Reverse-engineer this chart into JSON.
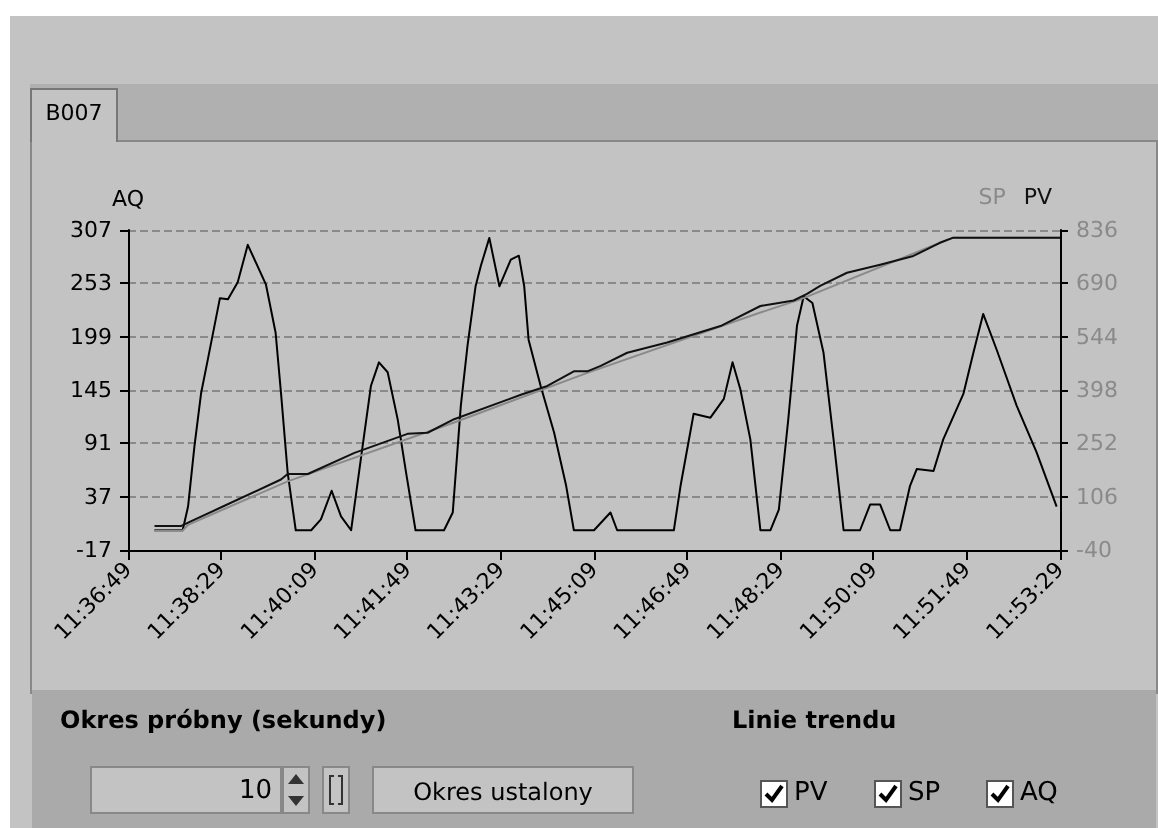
{
  "chart_data": {
    "type": "line",
    "title": "B007",
    "ylabel": "AQ",
    "xlim": [
      11.6136,
      11.8914
    ],
    "xticks": [
      {
        "value": 11.6136,
        "label": "11:36:49"
      },
      {
        "value": 11.6414,
        "label": "11:38:29"
      },
      {
        "value": 11.6692,
        "label": "11:40:09"
      },
      {
        "value": 11.6969,
        "label": "11:41:49"
      },
      {
        "value": 11.7247,
        "label": "11:43:29"
      },
      {
        "value": 11.7525,
        "label": "11:45:09"
      },
      {
        "value": 11.7803,
        "label": "11:46:49"
      },
      {
        "value": 11.8081,
        "label": "11:48:29"
      },
      {
        "value": 11.8358,
        "label": "11:50:09"
      },
      {
        "value": 11.8636,
        "label": "11:51:49"
      },
      {
        "value": 11.8914,
        "label": "11:53:29"
      }
    ],
    "ylim": [
      -17,
      307
    ],
    "yticks": [
      -17,
      37,
      91,
      145,
      199,
      253,
      307
    ],
    "y2lim": [
      -40,
      836
    ],
    "y2ticks": [
      -40,
      106,
      252,
      398,
      544,
      690,
      836
    ],
    "grid": "y",
    "legend": "top right",
    "marker": "none",
    "series": [
      {
        "color": "#000000",
        "x": [
          11.6215,
          11.6299,
          11.6315,
          11.6334,
          11.6354,
          11.6374,
          11.641,
          11.6434,
          11.6463,
          11.6493,
          11.6547,
          11.6576,
          11.6592,
          11.6612,
          11.6636,
          11.6682,
          11.6711,
          11.6743,
          11.6771,
          11.6801,
          11.683,
          11.686,
          11.6884,
          11.691,
          11.694,
          11.6965,
          11.6993,
          11.7078,
          11.7104,
          11.7128,
          11.7148,
          11.7172,
          11.7188,
          11.7213,
          11.7243,
          11.7277,
          11.7301,
          11.7317,
          11.733,
          11.7366,
          11.7406,
          11.7442,
          11.7465,
          11.7525,
          11.7574,
          11.7594,
          11.7763,
          11.7783,
          11.7822,
          11.7872,
          11.7912,
          11.7938,
          11.7961,
          11.7991,
          11.8021,
          11.8051,
          11.8076,
          11.8104,
          11.813,
          11.815,
          11.8176,
          11.8209,
          11.8239,
          11.8269,
          11.8318,
          11.8348,
          11.8378,
          11.8408,
          11.8437,
          11.8467,
          11.8487,
          11.8537,
          11.8566,
          11.8626,
          11.8656,
          11.8685,
          11.8725,
          11.8785,
          11.8844,
          11.8904
        ],
        "values": [
          3,
          3,
          27,
          88,
          142,
          176,
          238,
          237,
          254,
          292,
          252,
          203,
          142,
          61,
          3,
          3,
          14,
          43,
          17,
          3,
          75,
          149,
          173,
          163,
          115,
          61,
          3,
          3,
          21,
          129,
          190,
          250,
          271,
          299,
          250,
          277,
          281,
          250,
          196,
          149,
          102,
          48,
          3,
          3,
          21,
          3,
          3,
          48,
          121,
          117,
          136,
          173,
          146,
          95,
          3,
          3,
          24,
          115,
          210,
          240,
          233,
          183,
          95,
          3,
          3,
          29,
          29,
          3,
          3,
          48,
          65,
          63,
          95,
          141,
          183,
          222,
          186,
          129,
          82,
          27
        ]
      },
      {
        "name": "SP",
        "color": "#8a8a8a",
        "axis": "y2",
        "x": [
          11.6215,
          11.6299,
          11.6315,
          11.6612,
          11.7108,
          11.7505,
          11.8021,
          11.814,
          11.8556,
          11.8596,
          11.8914
        ],
        "values": [
          13,
          13,
          29,
          148,
          309,
          445,
          610,
          646,
          801,
          815,
          815
        ]
      },
      {
        "name": "PV",
        "color": "#111111",
        "axis": "y2",
        "x": [
          11.6215,
          11.6295,
          11.6315,
          11.6414,
          11.6592,
          11.6612,
          11.6672,
          11.6811,
          11.6969,
          11.7029,
          11.7108,
          11.7307,
          11.7386,
          11.7465,
          11.7505,
          11.7545,
          11.7624,
          11.7743,
          11.7902,
          11.8021,
          11.808,
          11.812,
          11.816,
          11.8199,
          11.8279,
          11.8378,
          11.8477,
          11.8556,
          11.8596,
          11.8914
        ],
        "values": [
          26,
          26,
          35,
          77,
          153,
          168,
          168,
          226,
          278,
          281,
          318,
          385,
          409,
          449,
          449,
          464,
          500,
          528,
          573,
          628,
          637,
          643,
          661,
          683,
          719,
          741,
          765,
          801,
          815,
          815
        ]
      }
    ],
    "annotations": [
      "Okres próbny (sekundy)",
      "10",
      "Okres ustalony",
      "Linie trendu",
      "PV",
      "SP",
      "AQ"
    ]
  }
}
